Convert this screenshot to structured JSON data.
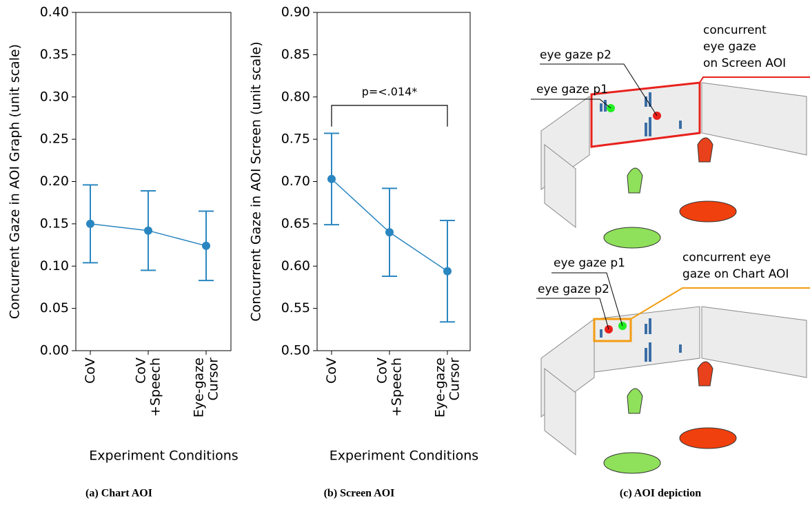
{
  "chart_data": [
    {
      "type": "line",
      "caption": "(a) Chart AOI",
      "ylabel": "Concurrent Gaze in AOI Graph (unit scale)",
      "xlabel": "Experiment Conditions",
      "categories": [
        [
          "CoV"
        ],
        [
          "CoV",
          "+Speech"
        ],
        [
          "Eye-gaze",
          "Cursor"
        ]
      ],
      "series": [
        {
          "color": "#2a86c0",
          "values": [
            0.15,
            0.142,
            0.124
          ],
          "errors": [
            0.046,
            0.047,
            0.041
          ]
        }
      ],
      "ylim": [
        0,
        0.4
      ],
      "yticks": [
        {
          "value": 0,
          "label": "0.00"
        },
        {
          "value": 0.05,
          "label": "0.05"
        },
        {
          "value": 0.1,
          "label": "0.10"
        },
        {
          "value": 0.15,
          "label": "0.15"
        },
        {
          "value": 0.2,
          "label": "0.20"
        },
        {
          "value": 0.25,
          "label": "0.25"
        },
        {
          "value": 0.3,
          "label": "0.30"
        },
        {
          "value": 0.35,
          "label": "0.35"
        },
        {
          "value": 0.4,
          "label": "0.40"
        }
      ]
    },
    {
      "type": "line",
      "caption": "(b) Screen AOI",
      "ylabel": "Concurrent Gaze in AOI Screen (unit scale)",
      "xlabel": "Experiment Conditions",
      "annotation": "p=<.014*",
      "categories": [
        [
          "CoV"
        ],
        [
          "CoV",
          "+Speech"
        ],
        [
          "Eye-gaze",
          "Cursor"
        ]
      ],
      "series": [
        {
          "color": "#2a86c0",
          "values": [
            0.703,
            0.64,
            0.594
          ],
          "errors": [
            0.054,
            0.052,
            0.06
          ]
        }
      ],
      "ylim": [
        0.5,
        0.9
      ],
      "yticks": [
        {
          "value": 0.5,
          "label": "0.50"
        },
        {
          "value": 0.55,
          "label": "0.55"
        },
        {
          "value": 0.6,
          "label": "0.60"
        },
        {
          "value": 0.65,
          "label": "0.65"
        },
        {
          "value": 0.7,
          "label": "0.70"
        },
        {
          "value": 0.75,
          "label": "0.75"
        },
        {
          "value": 0.8,
          "label": "0.80"
        },
        {
          "value": 0.85,
          "label": "0.85"
        },
        {
          "value": 0.9,
          "label": "0.90"
        }
      ]
    }
  ],
  "illustration": {
    "caption": "(c) AOI depiction",
    "top": {
      "p2": "eye gaze p2",
      "p1": "eye gaze p1",
      "concurrent": [
        "concurrent",
        "eye gaze",
        "on Screen AOI"
      ]
    },
    "bottom": {
      "p1": "eye gaze p1",
      "p2": "eye gaze p2",
      "concurrent": [
        "concurrent  eye",
        "gaze on Chart AOI"
      ]
    }
  }
}
